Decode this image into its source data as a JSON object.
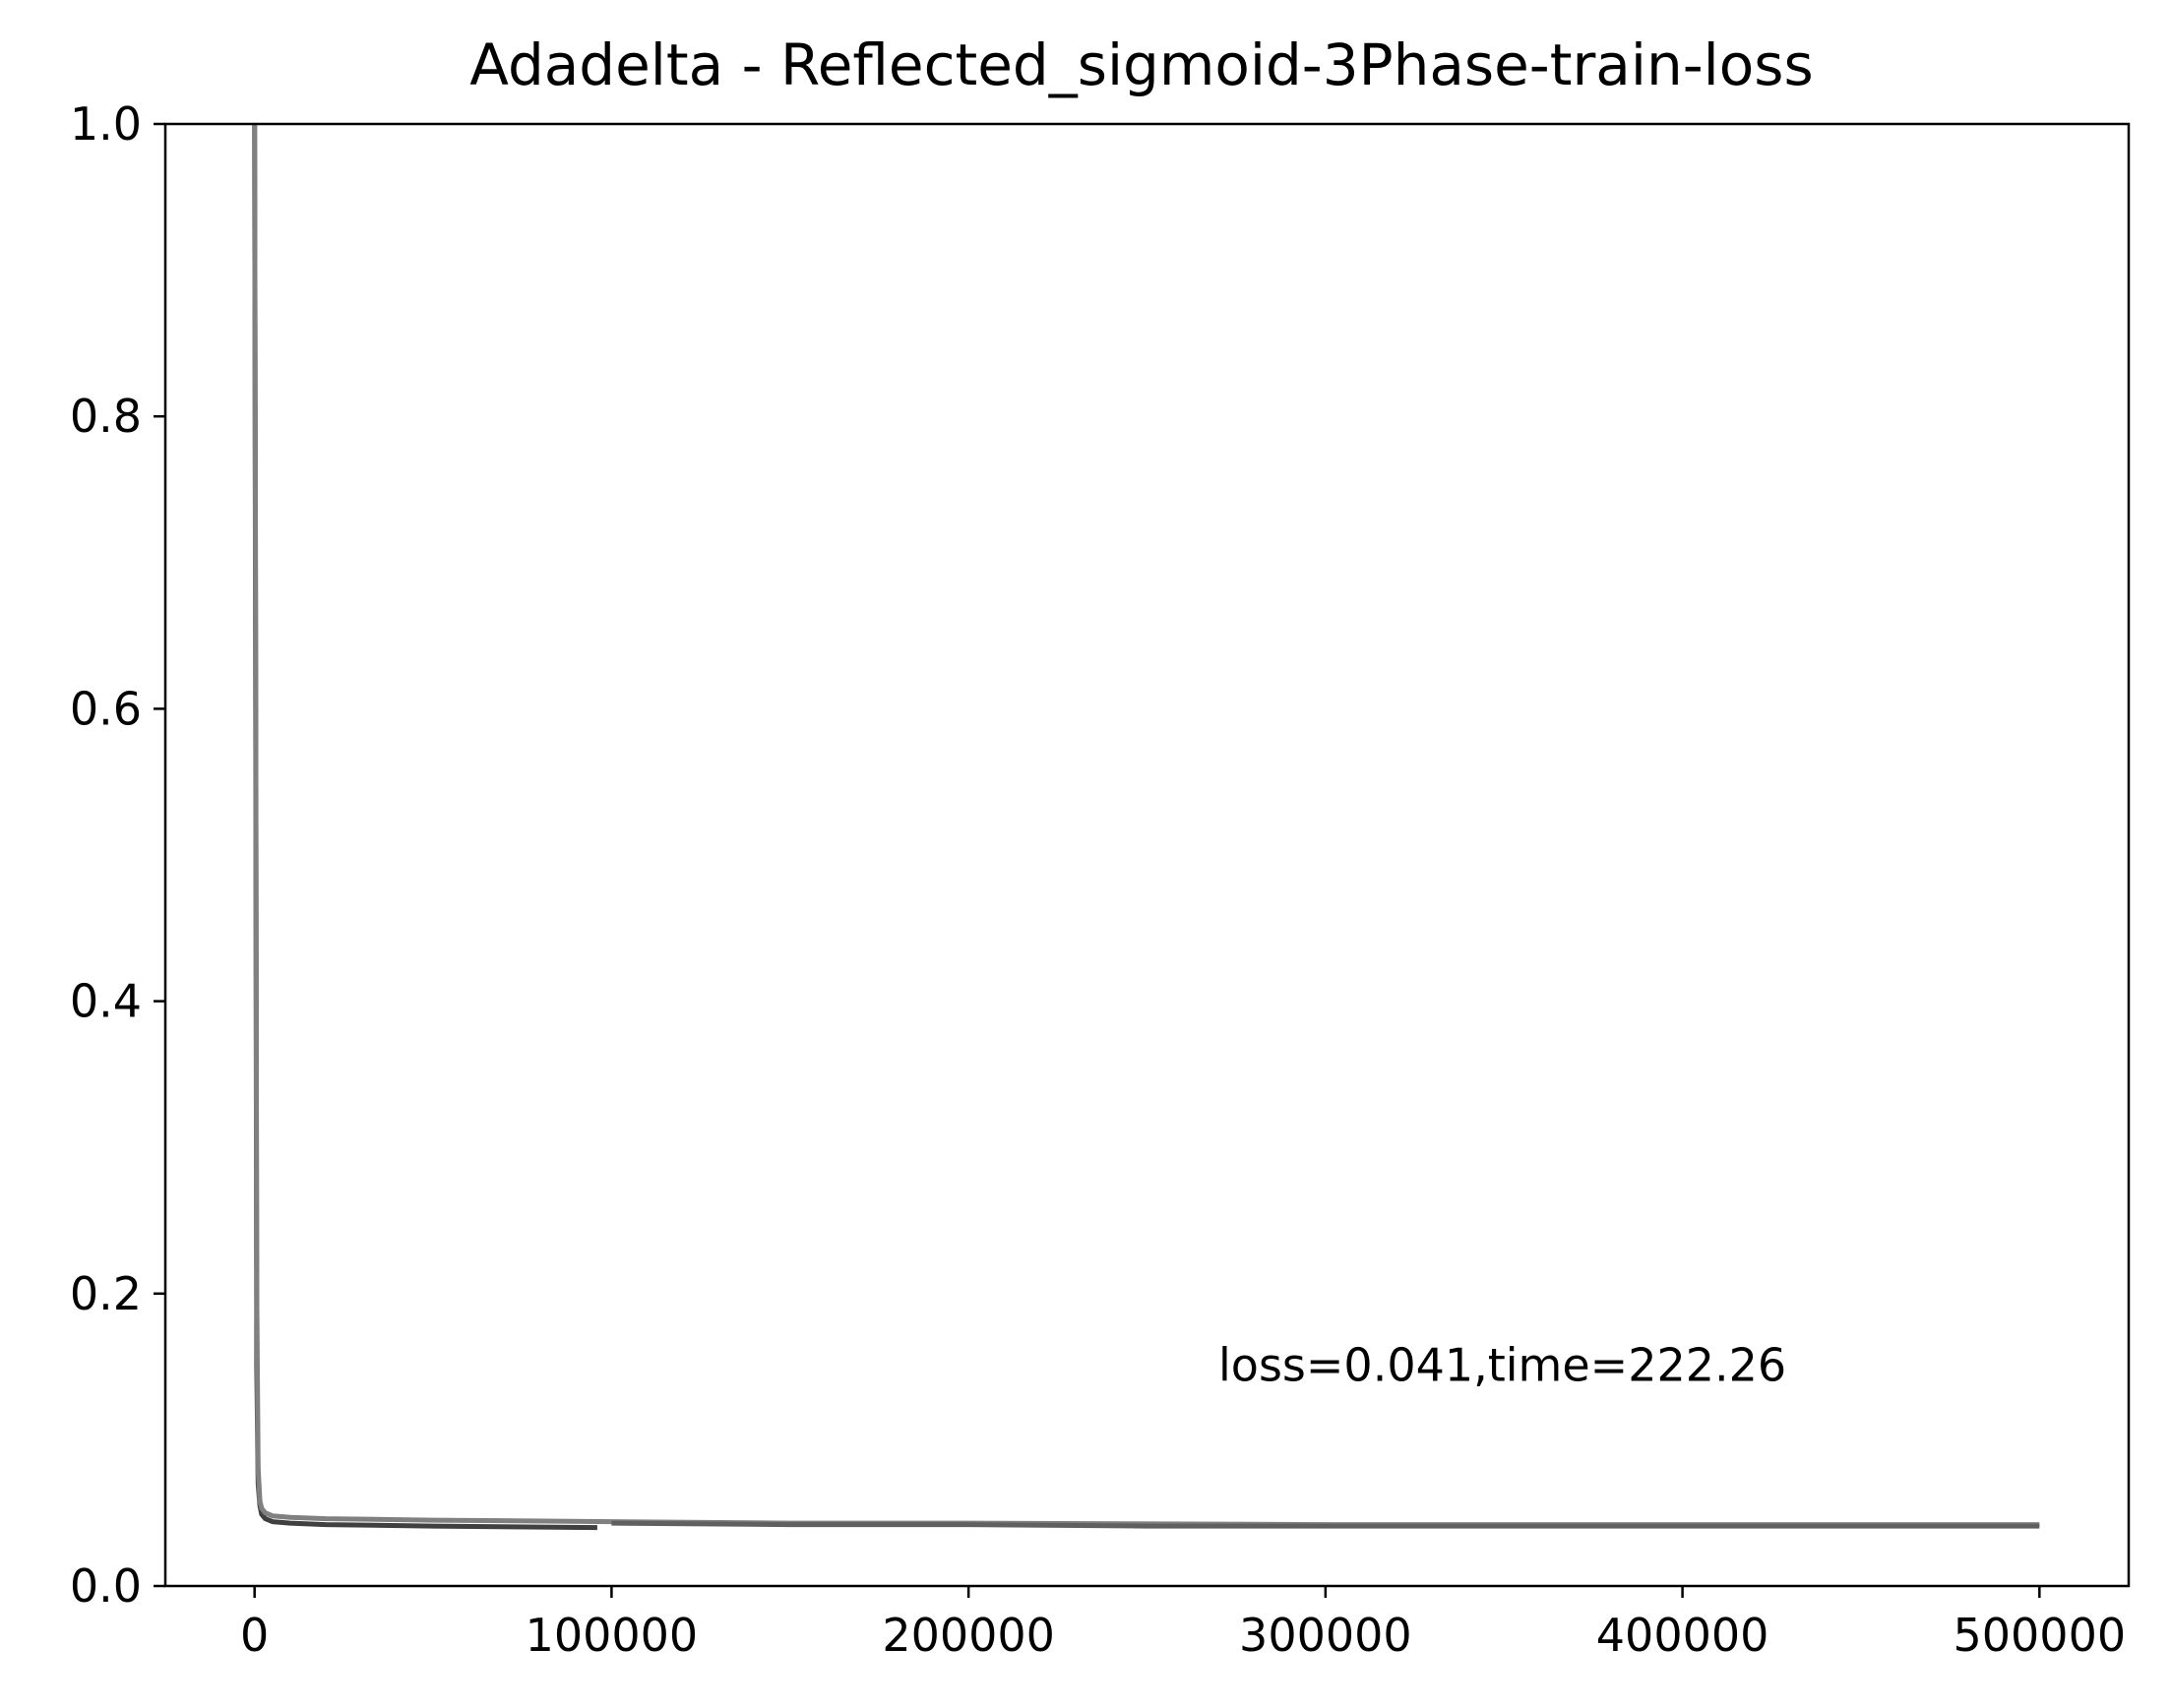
{
  "chart_data": {
    "type": "line",
    "title": "Adadelta - Reflected_sigmoid-3Phase-train-loss",
    "xlabel": "",
    "ylabel": "",
    "xlim": [
      -25000,
      525000
    ],
    "ylim": [
      0,
      1.0
    ],
    "x_ticks": [
      0,
      100000,
      200000,
      300000,
      400000,
      500000
    ],
    "x_tick_labels": [
      "0",
      "100000",
      "200000",
      "300000",
      "400000",
      "500000"
    ],
    "y_ticks": [
      0.0,
      0.2,
      0.4,
      0.6,
      0.8,
      1.0
    ],
    "y_tick_labels": [
      "0.0",
      "0.2",
      "0.4",
      "0.6",
      "0.8",
      "1.0"
    ],
    "grid": false,
    "legend": "none",
    "series": [
      {
        "color": "#404040",
        "x": [
          0,
          300,
          600,
          1000,
          1500,
          2000,
          3000,
          5000,
          10000,
          20000,
          50000,
          96000
        ],
        "y": [
          1.0,
          0.6,
          0.15,
          0.07,
          0.055,
          0.049,
          0.046,
          0.044,
          0.043,
          0.042,
          0.041,
          0.04
        ]
      },
      {
        "color": "#808080",
        "x": [
          0,
          300,
          600,
          1000,
          1500,
          2000,
          3000,
          5000,
          10000,
          20000,
          50000,
          100000,
          150000,
          200000,
          300000,
          400000,
          500000
        ],
        "y": [
          1.0,
          0.65,
          0.2,
          0.08,
          0.058,
          0.053,
          0.05,
          0.048,
          0.047,
          0.046,
          0.045,
          0.044,
          0.043,
          0.043,
          0.042,
          0.042,
          0.042
        ]
      },
      {
        "color": "#606060",
        "x": [
          100000,
          150000,
          200000,
          250000,
          300000,
          350000,
          400000,
          450000,
          500000
        ],
        "y": [
          0.043,
          0.042,
          0.042,
          0.041,
          0.041,
          0.041,
          0.041,
          0.041,
          0.041
        ]
      }
    ],
    "annotations": [
      {
        "text": "loss=0.041,time=222.26",
        "x": 270000,
        "y": 0.135
      }
    ]
  }
}
